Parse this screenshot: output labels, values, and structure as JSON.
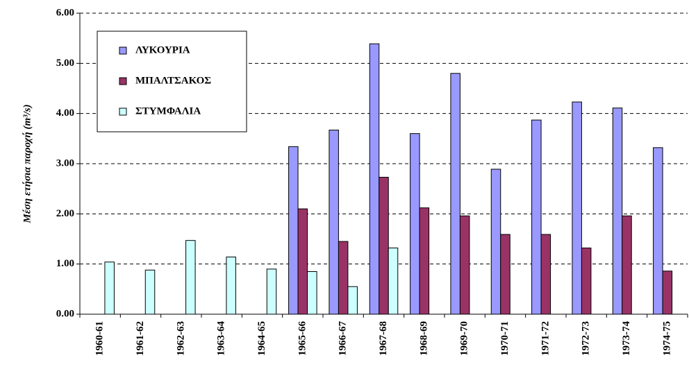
{
  "chart_data": {
    "type": "bar",
    "y_label": "Μέση ετήσια παροχή (m³/s)",
    "categories": [
      "1960-61",
      "1961-62",
      "1962-63",
      "1963-64",
      "1964-65",
      "1965-66",
      "1966-67",
      "1967-68",
      "1968-69",
      "1969-70",
      "1970-71",
      "1971-72",
      "1972-73",
      "1973-74",
      "1974-75"
    ],
    "series": [
      {
        "name": "ΛΥΚΟΥΡΙΑ",
        "color": "#9999ff",
        "values": [
          null,
          null,
          null,
          null,
          null,
          3.34,
          3.67,
          5.39,
          3.6,
          4.8,
          2.89,
          3.87,
          4.23,
          4.11,
          3.32
        ]
      },
      {
        "name": "ΜΠΑΛΤΣΑΚΟΣ",
        "color": "#993366",
        "values": [
          null,
          null,
          null,
          null,
          null,
          2.1,
          1.45,
          2.73,
          2.12,
          1.96,
          1.59,
          1.59,
          1.32,
          1.96,
          0.86
        ]
      },
      {
        "name": "ΣΤΥΜΦΑΛΙΑ",
        "color": "#ccffff",
        "values": [
          1.04,
          0.88,
          1.47,
          1.14,
          0.9,
          0.85,
          0.55,
          1.32,
          null,
          null,
          null,
          null,
          null,
          null,
          null
        ]
      }
    ],
    "ylim": [
      0,
      6
    ],
    "yticks": [
      {
        "value": 0,
        "label": "0.00"
      },
      {
        "value": 1,
        "label": "1.00"
      },
      {
        "value": 2,
        "label": "2.00"
      },
      {
        "value": 3,
        "label": "3.00"
      },
      {
        "value": 4,
        "label": "4.00"
      },
      {
        "value": 5,
        "label": "5.00"
      },
      {
        "value": 6,
        "label": "6.00"
      }
    ],
    "grid": true,
    "legend": "upper left"
  }
}
